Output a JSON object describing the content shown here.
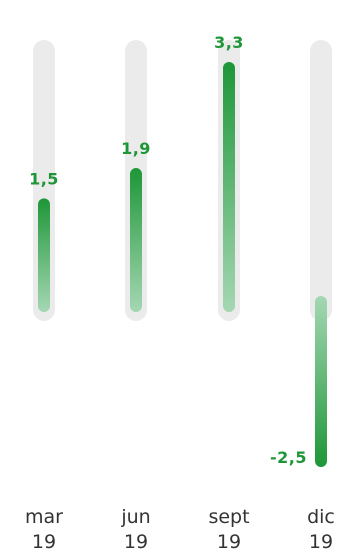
{
  "chart_data": {
    "type": "bar",
    "categories": [
      {
        "month": "mar",
        "year": "19"
      },
      {
        "month": "jun",
        "year": "19"
      },
      {
        "month": "sept",
        "year": "19"
      },
      {
        "month": "dic",
        "year": "19"
      }
    ],
    "series": [
      {
        "values": [
          1.5,
          1.9,
          3.3,
          -2.5
        ],
        "value_labels": [
          "1,5",
          "1,9",
          "3,3",
          "-2,5"
        ]
      }
    ],
    "ylim": [
      -2.5,
      3.3
    ],
    "grid": false,
    "legend": "none",
    "colors": {
      "bar_dark": "#1e9638",
      "bar_light": "#a5d7b3",
      "track": "#ebebeb",
      "label": "#1e9638",
      "tick": "#333333"
    }
  }
}
